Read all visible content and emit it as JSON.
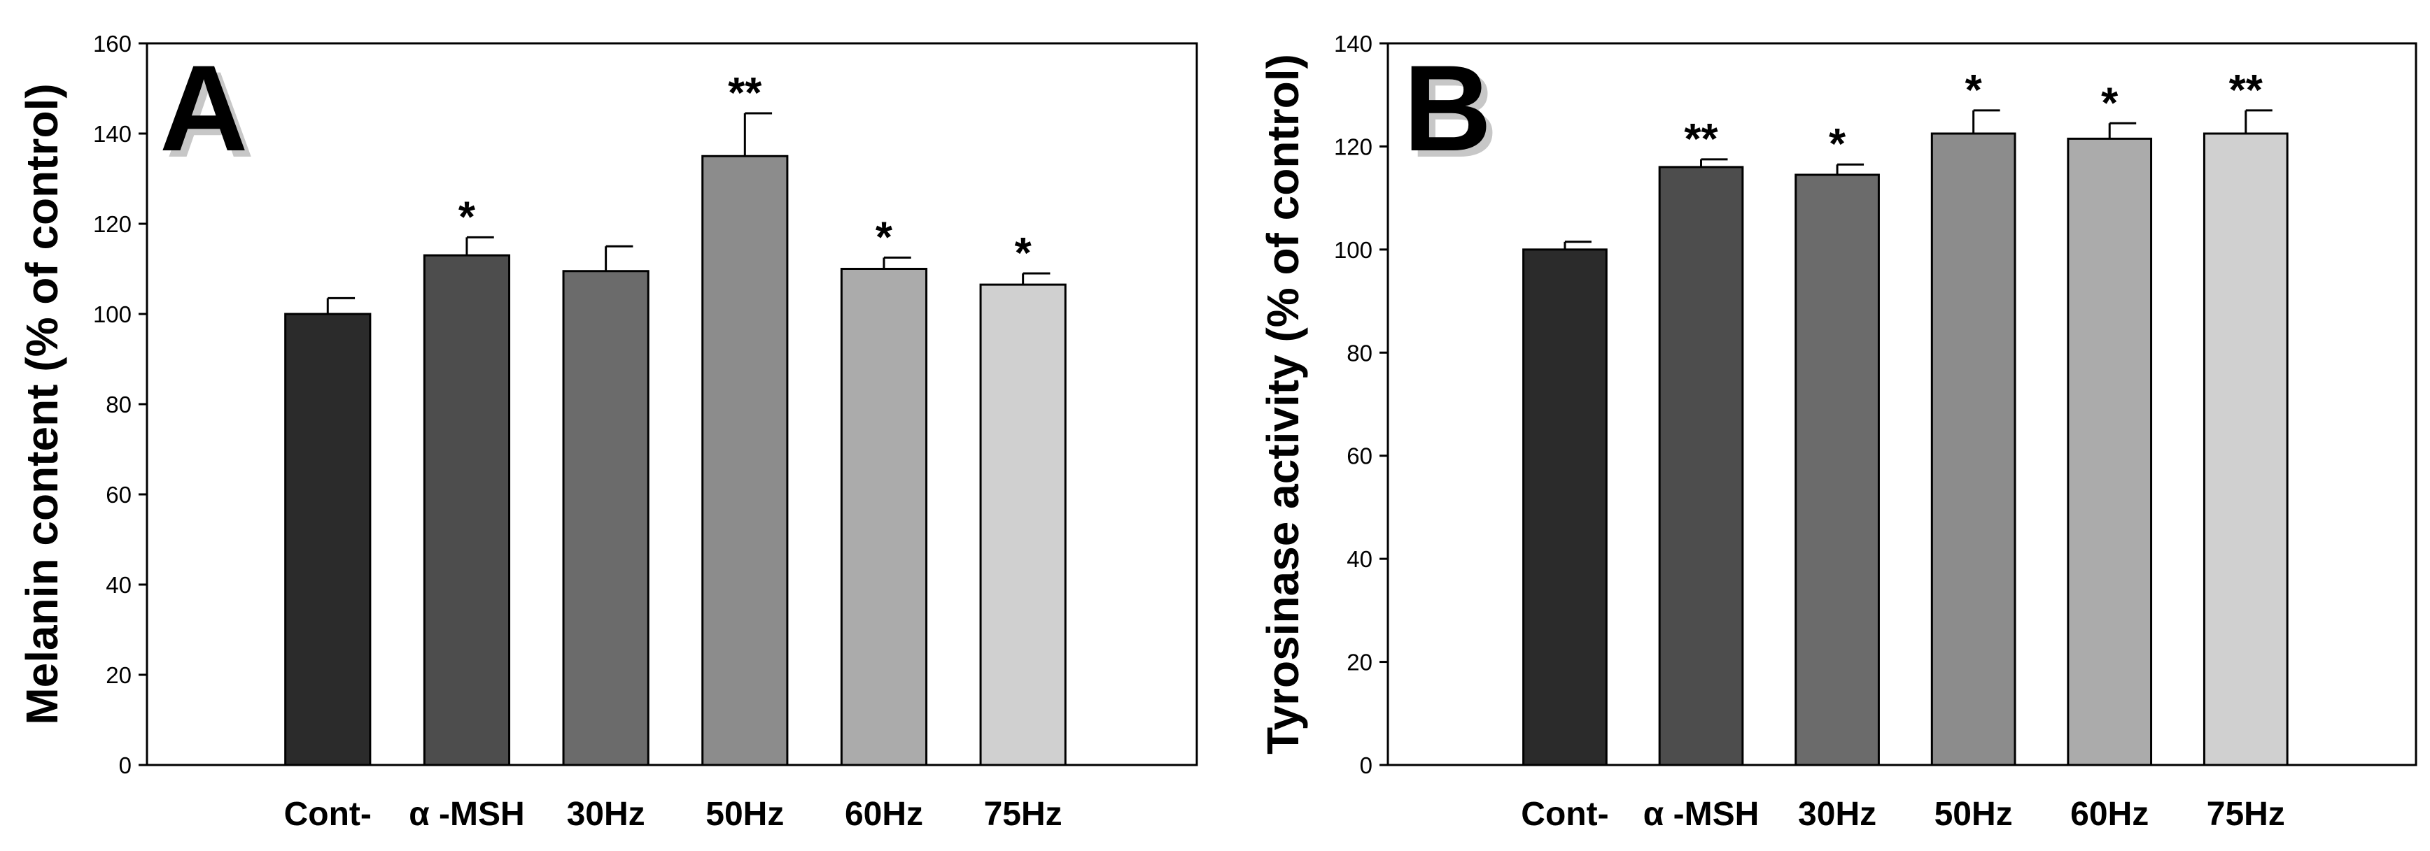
{
  "chart_data": [
    {
      "type": "bar",
      "panel_label": "A",
      "ylabel": "Melanin content (% of control)",
      "xlabel": "",
      "categories": [
        "Cont-",
        "α  -MSH",
        "30Hz",
        "50Hz",
        "60Hz",
        "75Hz"
      ],
      "values": [
        100,
        113,
        109.5,
        135,
        110,
        106.5
      ],
      "errors": [
        3.5,
        4,
        5.5,
        9.5,
        2.5,
        2.5
      ],
      "significance": [
        "",
        "*",
        "",
        "**",
        "*",
        "*"
      ],
      "colors": [
        "#2b2b2b",
        "#4d4d4d",
        "#6b6b6b",
        "#8c8c8c",
        "#ababab",
        "#d0d0d0"
      ],
      "ylim": [
        0,
        160
      ],
      "yticks": [
        0,
        20,
        40,
        60,
        80,
        100,
        120,
        140,
        160
      ],
      "grid": false
    },
    {
      "type": "bar",
      "panel_label": "B",
      "ylabel": "Tyrosinase activity (% of control)",
      "xlabel": "",
      "categories": [
        "Cont-",
        "α  -MSH",
        "30Hz",
        "50Hz",
        "60Hz",
        "75Hz"
      ],
      "values": [
        100,
        116,
        114.5,
        122.5,
        121.5,
        122.5
      ],
      "errors": [
        1.5,
        1.5,
        2,
        4.5,
        3,
        4.5
      ],
      "significance": [
        "",
        "**",
        "*",
        "*",
        "*",
        "**"
      ],
      "colors": [
        "#2b2b2b",
        "#4d4d4d",
        "#6b6b6b",
        "#8c8c8c",
        "#ababab",
        "#d0d0d0"
      ],
      "ylim": [
        0,
        140
      ],
      "yticks": [
        0,
        20,
        40,
        60,
        80,
        100,
        120,
        140
      ],
      "grid": false
    }
  ]
}
